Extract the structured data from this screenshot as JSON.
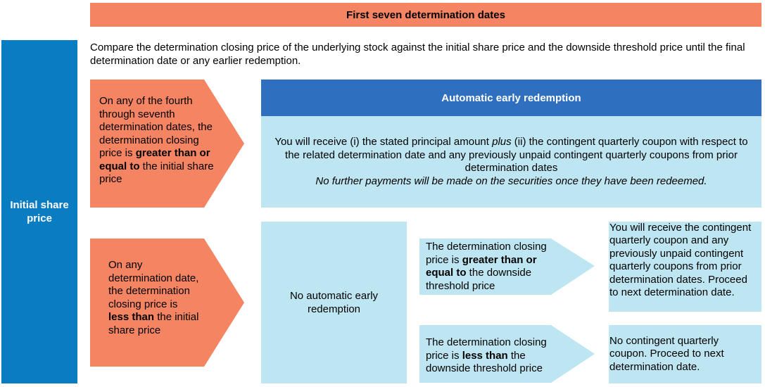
{
  "header": {
    "title": "First seven determination dates"
  },
  "side_label": "Initial share price",
  "intro": "Compare the determination closing price of the underlying stock against the initial share price and the downside threshold price until the final determination date or any earlier redemption.",
  "condition_top": {
    "pre": "On any of the fourth through seventh determination dates, the determination closing price is ",
    "bold": "greater than or equal to",
    "post": " the initial share price"
  },
  "redemption": {
    "title": "Automatic early redemption",
    "line1_pre": "You will receive (i) the stated principal amount ",
    "line1_italic": "plus",
    "line1_post": " (ii) the contingent quarterly coupon with respect to the related determination date and any previously unpaid contingent quarterly coupons from prior determination dates",
    "line2": "No further payments will be made on the securities once they have been redeemed."
  },
  "condition_bottom": {
    "pre": "On any determination date, the determination closing price is ",
    "bold": "less than",
    "post": " the initial share price"
  },
  "no_redemption": "No automatic early redemption",
  "branch_upper": {
    "pre": "The determination closing price is ",
    "bold": "greater than or equal to",
    "post": " the downside threshold price"
  },
  "branch_lower": {
    "pre": "The determination closing price is ",
    "bold": "less than",
    "post": " the downside threshold price"
  },
  "outcome_upper": "You will receive the contingent quarterly coupon and any previously unpaid contingent quarterly coupons from prior determination dates. Proceed to next determination date.",
  "outcome_lower": "No contingent quarterly coupon. Proceed to next determination date.",
  "colors": {
    "orange": "#f58462",
    "side_blue": "#0a7cc2",
    "header_blue": "#2e6fbf",
    "light_blue": "#bde6f2"
  }
}
